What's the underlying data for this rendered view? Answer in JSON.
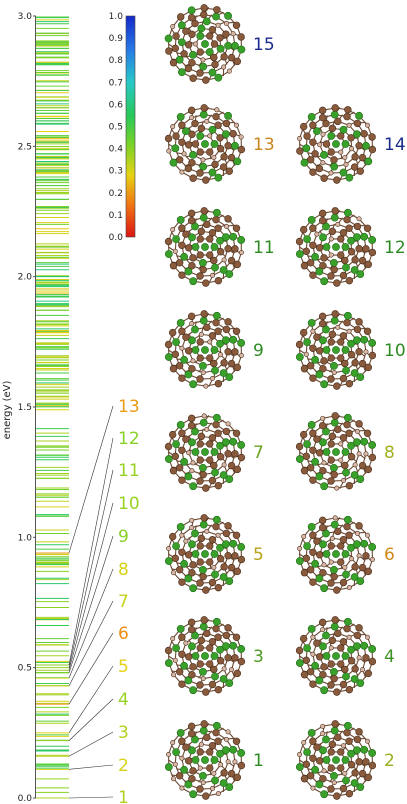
{
  "chart_data": {
    "type": "spectrum",
    "ylabel": "energy (eV)",
    "ylim": [
      0,
      3.0
    ],
    "yticks": [
      "0.0",
      "0.5",
      "1.0",
      "1.5",
      "2.0",
      "2.5",
      "3.0"
    ],
    "colorbar": {
      "min": 0.0,
      "max": 1.0,
      "ticks": [
        "0.0",
        "0.1",
        "0.2",
        "0.3",
        "0.4",
        "0.5",
        "0.6",
        "0.7",
        "0.8",
        "0.9",
        "1.0"
      ]
    },
    "labeled_states": [
      {
        "label": "1",
        "energy": 0.0,
        "color_value": 0.35
      },
      {
        "label": "2",
        "energy": 0.11,
        "color_value": 0.3
      },
      {
        "label": "3",
        "energy": 0.16,
        "color_value": 0.35
      },
      {
        "label": "4",
        "energy": 0.22,
        "color_value": 0.38
      },
      {
        "label": "5",
        "energy": 0.25,
        "color_value": 0.28
      },
      {
        "label": "6",
        "energy": 0.36,
        "color_value": 0.18
      },
      {
        "label": "7",
        "energy": 0.43,
        "color_value": 0.32
      },
      {
        "label": "8",
        "energy": 0.46,
        "color_value": 0.3
      },
      {
        "label": "9",
        "energy": 0.48,
        "color_value": 0.4
      },
      {
        "label": "10",
        "energy": 0.49,
        "color_value": 0.38
      },
      {
        "label": "11",
        "energy": 0.5,
        "color_value": 0.38
      },
      {
        "label": "12",
        "energy": 0.51,
        "color_value": 0.4
      },
      {
        "label": "13",
        "energy": 0.94,
        "color_value": 0.2
      }
    ],
    "structures": [
      {
        "label": "15",
        "color": "#1a2b8c",
        "variant": 2
      },
      {
        "label": "13",
        "color": "#c8861a",
        "variant": 1
      },
      {
        "label": "14",
        "color": "#1a2b8c",
        "variant": 1
      },
      {
        "label": "11",
        "color": "#2e8b24",
        "variant": 0
      },
      {
        "label": "12",
        "color": "#2e8b24",
        "variant": 0
      },
      {
        "label": "9",
        "color": "#2e8b24",
        "variant": 0
      },
      {
        "label": "10",
        "color": "#2e8b24",
        "variant": 0
      },
      {
        "label": "7",
        "color": "#6aa31f",
        "variant": 0
      },
      {
        "label": "8",
        "color": "#a2b01d",
        "variant": 0
      },
      {
        "label": "5",
        "color": "#b8a21a",
        "variant": 0
      },
      {
        "label": "6",
        "color": "#d08a1a",
        "variant": 0
      },
      {
        "label": "3",
        "color": "#4d9a22",
        "variant": 0
      },
      {
        "label": "4",
        "color": "#3f9323",
        "variant": 0
      },
      {
        "label": "1",
        "color": "#2e8b24",
        "variant": 0
      },
      {
        "label": "2",
        "color": "#9aae1e",
        "variant": 0
      }
    ]
  }
}
